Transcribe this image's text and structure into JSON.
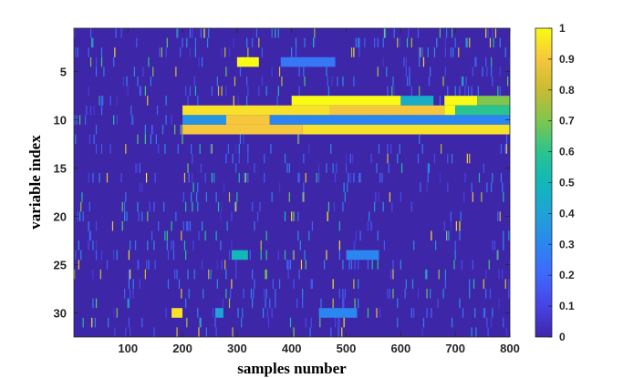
{
  "chart_data": {
    "type": "heatmap",
    "title": "",
    "xlabel": "samples number",
    "ylabel": "variable index",
    "xlim": [
      1,
      800
    ],
    "ylim": [
      0.5,
      32.5
    ],
    "y_reversed": true,
    "x_ticks": [
      "100",
      "200",
      "300",
      "400",
      "500",
      "600",
      "700",
      "800"
    ],
    "y_ticks": [
      "5",
      "10",
      "15",
      "20",
      "25",
      "30"
    ],
    "colormap": "parula",
    "background_value": 0,
    "colorbar": {
      "range": [
        0,
        1
      ],
      "ticks": [
        "0",
        "0.1",
        "0.2",
        "0.3",
        "0.4",
        "0.5",
        "0.6",
        "0.7",
        "0.8",
        "0.9",
        "1"
      ]
    },
    "rows": [
      {
        "variable": 8,
        "segments": [
          {
            "x": [
              400,
              600
            ],
            "value": 1.0
          },
          {
            "x": [
              600,
              660
            ],
            "value": 0.45
          },
          {
            "x": [
              680,
              740
            ],
            "value": 1.0
          },
          {
            "x": [
              740,
              800
            ],
            "value": 0.7
          }
        ]
      },
      {
        "variable": 9,
        "segments": [
          {
            "x": [
              200,
              470
            ],
            "value": 0.95
          },
          {
            "x": [
              470,
              680
            ],
            "value": 0.9
          },
          {
            "x": [
              680,
              700
            ],
            "value": 1.0
          },
          {
            "x": [
              700,
              800
            ],
            "value": 0.6
          }
        ]
      },
      {
        "variable": 10,
        "segments": [
          {
            "x": [
              200,
              280
            ],
            "value": 0.35
          },
          {
            "x": [
              280,
              360
            ],
            "value": 0.9
          },
          {
            "x": [
              360,
              800
            ],
            "value": 0.3
          }
        ]
      },
      {
        "variable": 11,
        "segments": [
          {
            "x": [
              200,
              420
            ],
            "value": 0.9
          },
          {
            "x": [
              420,
              800
            ],
            "value": 0.95
          }
        ]
      },
      {
        "variable": 4,
        "segments": [
          {
            "x": [
              300,
              340
            ],
            "value": 1.0
          },
          {
            "x": [
              380,
              480
            ],
            "value": 0.25
          }
        ]
      },
      {
        "variable": 30,
        "segments": [
          {
            "x": [
              180,
              200
            ],
            "value": 0.95
          },
          {
            "x": [
              260,
              275
            ],
            "value": 0.4
          },
          {
            "x": [
              450,
              520
            ],
            "value": 0.3
          }
        ]
      },
      {
        "variable": 24,
        "segments": [
          {
            "x": [
              290,
              320
            ],
            "value": 0.5
          },
          {
            "x": [
              500,
              560
            ],
            "value": 0.3
          }
        ]
      }
    ]
  }
}
